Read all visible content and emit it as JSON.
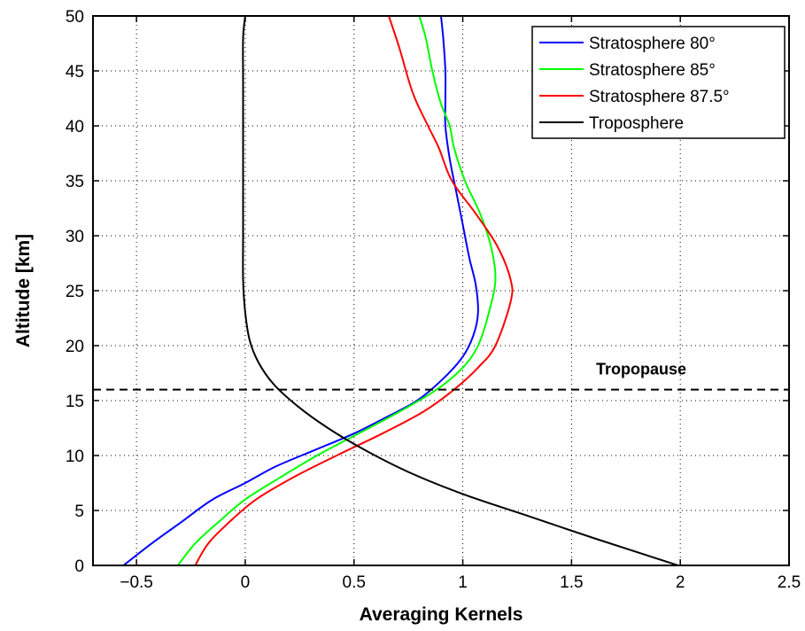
{
  "chart_data": {
    "type": "line",
    "title": "",
    "xlabel": "Averaging Kernels",
    "ylabel": "Altitude [km]",
    "xlim": [
      -0.7,
      2.5
    ],
    "ylim": [
      0,
      50
    ],
    "xticks": [
      -0.5,
      0,
      0.5,
      1,
      1.5,
      2,
      2.5
    ],
    "xtick_labels": [
      "−0.5",
      "0",
      "0.5",
      "1",
      "1.5",
      "2",
      "2.5"
    ],
    "yticks": [
      0,
      5,
      10,
      15,
      20,
      25,
      30,
      35,
      40,
      45,
      50
    ],
    "ytick_labels": [
      "0",
      "5",
      "10",
      "15",
      "20",
      "25",
      "30",
      "35",
      "40",
      "45",
      "50"
    ],
    "grid": true,
    "legend_position": "top-right",
    "series": [
      {
        "name": "Stratosphere 80°",
        "color": "#0000ff",
        "x": [
          -0.56,
          -0.43,
          -0.29,
          -0.15,
          0.0,
          0.14,
          0.32,
          0.5,
          0.65,
          0.79,
          0.91,
          1.0,
          1.05,
          1.07,
          1.06,
          1.03,
          1.0,
          0.97,
          0.94,
          0.92,
          0.92,
          0.92,
          0.91,
          0.9
        ],
        "y": [
          0,
          2,
          4,
          6,
          7.5,
          9,
          10.5,
          12,
          13.5,
          15,
          17,
          19,
          21,
          23,
          25.5,
          28,
          31,
          34,
          37,
          40,
          42,
          45,
          48,
          50
        ]
      },
      {
        "name": "Stratosphere 85°",
        "color": "#00ff00",
        "x": [
          -0.31,
          -0.23,
          -0.12,
          0.0,
          0.16,
          0.33,
          0.52,
          0.71,
          0.88,
          1.0,
          1.07,
          1.12,
          1.15,
          1.13,
          1.08,
          1.01,
          0.96,
          0.94,
          0.9,
          0.86,
          0.83,
          0.8
        ],
        "y": [
          0,
          2,
          4,
          6,
          8,
          10,
          12,
          14,
          16,
          18,
          20,
          23,
          26,
          29,
          32,
          35,
          38,
          40,
          42,
          45,
          48,
          50
        ]
      },
      {
        "name": "Stratosphere 87.5°",
        "color": "#ff0000",
        "x": [
          -0.23,
          -0.17,
          -0.07,
          0.05,
          0.22,
          0.42,
          0.63,
          0.82,
          0.96,
          1.07,
          1.15,
          1.22,
          1.22,
          1.16,
          1.06,
          0.95,
          0.89,
          0.84,
          0.77,
          0.71,
          0.66
        ],
        "y": [
          0,
          2,
          4,
          6,
          8,
          10,
          12,
          14,
          16,
          18,
          20,
          24,
          26,
          29,
          32,
          35,
          38,
          40,
          43,
          47,
          50
        ]
      },
      {
        "name": "Troposphere",
        "color": "#000000",
        "x": [
          1.99,
          1.6,
          1.3,
          1.0,
          0.75,
          0.55,
          0.38,
          0.24,
          0.13,
          0.06,
          0.02,
          0.0,
          -0.01,
          -0.01,
          -0.01,
          -0.01,
          -0.01,
          -0.01,
          0.0
        ],
        "y": [
          0,
          2.5,
          4.5,
          6.5,
          8.5,
          10.5,
          12.5,
          14.5,
          16.5,
          18.5,
          20.5,
          23,
          26,
          30,
          35,
          40,
          44,
          48,
          50
        ]
      }
    ],
    "annotations": [
      {
        "text": "Tropopause",
        "y": 16,
        "line_style": "dashed"
      }
    ]
  }
}
